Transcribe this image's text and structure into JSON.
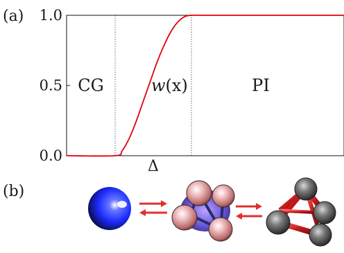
{
  "panel_a_label": "(a)",
  "panel_b_label": "(b)",
  "chart_data": {
    "type": "line",
    "title": "",
    "xlabel": "",
    "ylabel": "",
    "ylim": [
      0,
      1
    ],
    "yticks": [
      "0.0",
      "0.5",
      "1.0"
    ],
    "x_marker_label": "Δ",
    "grid": false,
    "region_labels": [
      "CG",
      "PI"
    ],
    "curve_label_italic": "w",
    "curve_label_rest": "(x)",
    "series": [
      {
        "color": "#e0000b",
        "x": [
          0,
          0.35,
          0.4,
          0.45,
          0.5,
          0.55,
          0.6,
          0.65,
          0.7,
          0.75,
          0.8,
          0.85,
          0.9,
          1.0,
          1.2,
          1.65,
          2.0
        ],
        "y": [
          0,
          0,
          0.035,
          0.12,
          0.24,
          0.38,
          0.52,
          0.66,
          0.78,
          0.88,
          0.95,
          0.99,
          1.0,
          1.0,
          1.0,
          1.0,
          1.0
        ]
      }
    ],
    "x_domain": [
      0,
      2
    ],
    "dotted_x": [
      0.35,
      0.9
    ]
  },
  "colors": {
    "curve": "#e0000b",
    "arrow": "#e03030",
    "sphere_blue": "#1b2cff",
    "sphere_dark": "#0a0a14",
    "bead_pink": "#e8a8a8",
    "bond_red": "#c01818"
  }
}
